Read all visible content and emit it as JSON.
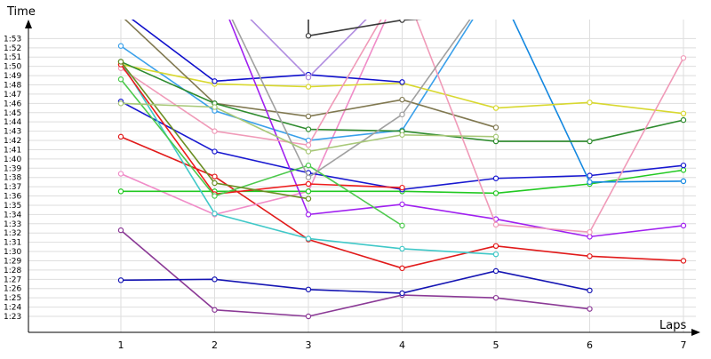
{
  "chart_data": {
    "type": "line",
    "ylabel": "Time",
    "xlabel": "Laps",
    "x_ticks": [
      "1",
      "2",
      "3",
      "4",
      "5",
      "6",
      "7"
    ],
    "y_ticks": [
      "1:23",
      "1:24",
      "1:25",
      "1:26",
      "1:27",
      "1:28",
      "1:29",
      "1:30",
      "1:31",
      "1:32",
      "1:33",
      "1:34",
      "1:35",
      "1:36",
      "1:37",
      "1:38",
      "1:39",
      "1:40",
      "1:41",
      "1:42",
      "1:43",
      "1:44",
      "1:45",
      "1:46",
      "1:47",
      "1:48",
      "1:49",
      "1:50",
      "1:51",
      "1:52",
      "1:53"
    ],
    "ylim_seconds": [
      82,
      116
    ],
    "xlim": [
      0.05,
      7.2
    ],
    "grid": true,
    "series": [
      {
        "color": "#8b3a96",
        "points": [
          [
            1,
            92.3
          ],
          [
            2,
            83.7
          ],
          [
            3,
            83.0
          ],
          [
            4,
            85.3
          ],
          [
            5,
            85.0
          ],
          [
            6,
            83.8
          ]
        ]
      },
      {
        "color": "#1515b3",
        "points": [
          [
            1,
            86.9
          ],
          [
            2,
            87.0
          ],
          [
            3,
            85.9
          ],
          [
            4,
            85.5
          ],
          [
            5,
            87.9
          ],
          [
            6,
            85.8
          ]
        ]
      },
      {
        "color": "#e11a1a",
        "points": [
          [
            1,
            102.4
          ],
          [
            2,
            98.1
          ],
          [
            3,
            91.3
          ],
          [
            4,
            88.2
          ],
          [
            5,
            90.6
          ],
          [
            6,
            89.5
          ],
          [
            7,
            89.0
          ]
        ]
      },
      {
        "color": "#f08cc8",
        "points": [
          [
            1,
            98.4
          ],
          [
            2,
            94.0
          ],
          [
            3,
            96.5
          ],
          [
            4,
            119.0
          ]
        ]
      },
      {
        "color": "#22c922",
        "points": [
          [
            1,
            96.5
          ],
          [
            2,
            96.5
          ],
          [
            3,
            96.5
          ],
          [
            4,
            96.5
          ],
          [
            5,
            96.3
          ],
          [
            6,
            97.3
          ],
          [
            7,
            98.8
          ]
        ]
      },
      {
        "color": "#1818d0",
        "points": [
          [
            1,
            106.2
          ],
          [
            2,
            100.8
          ],
          [
            3,
            98.5
          ],
          [
            4,
            96.7
          ],
          [
            5,
            97.9
          ],
          [
            6,
            98.2
          ],
          [
            7,
            99.3
          ]
        ]
      },
      {
        "color": "#3aa0ea",
        "points": [
          [
            1,
            112.2
          ],
          [
            2,
            105.2
          ],
          [
            3,
            102.0
          ],
          [
            4,
            103.1
          ],
          [
            5,
            119.0
          ]
        ]
      },
      {
        "color": "#1488e0",
        "points": [
          [
            5,
            119.0
          ],
          [
            6,
            97.5
          ],
          [
            7,
            97.6
          ]
        ]
      },
      {
        "color": "#d8d830",
        "points": [
          [
            1,
            110.2
          ],
          [
            2,
            108.1
          ],
          [
            3,
            107.8
          ],
          [
            4,
            108.2
          ],
          [
            5,
            105.5
          ],
          [
            6,
            106.1
          ],
          [
            7,
            104.9
          ]
        ]
      },
      {
        "color": "#807850",
        "points": [
          [
            1,
            115.5
          ],
          [
            2,
            106.0
          ],
          [
            3,
            104.6
          ],
          [
            4,
            106.4
          ],
          [
            5,
            103.4
          ]
        ]
      },
      {
        "color": "#2e8b2e",
        "points": [
          [
            1,
            110.5
          ],
          [
            2,
            106.0
          ],
          [
            3,
            103.2
          ],
          [
            4,
            103.0
          ],
          [
            5,
            101.9
          ],
          [
            6,
            101.9
          ],
          [
            7,
            104.2
          ]
        ]
      },
      {
        "color": "#1010cc",
        "points": [
          [
            1,
            116.0
          ],
          [
            2,
            108.4
          ],
          [
            3,
            109.1
          ],
          [
            4,
            108.3
          ]
        ]
      },
      {
        "color": "#b08ce0",
        "points": [
          [
            1,
            119.0
          ],
          [
            2,
            119.0
          ],
          [
            3,
            108.8
          ],
          [
            4,
            119.0
          ]
        ]
      },
      {
        "color": "#a020f0",
        "points": [
          [
            2,
            119.0
          ],
          [
            3,
            94.0
          ],
          [
            4,
            95.1
          ],
          [
            5,
            93.5
          ],
          [
            6,
            91.6
          ],
          [
            7,
            92.8
          ]
        ]
      },
      {
        "color": "#f09ab8",
        "points": [
          [
            1,
            109.8
          ],
          [
            2,
            103.0
          ],
          [
            3,
            101.5
          ],
          [
            4,
            119.0
          ],
          [
            5,
            92.9
          ],
          [
            6,
            92.1
          ],
          [
            7,
            110.9
          ]
        ]
      },
      {
        "color": "#40c8c8",
        "points": [
          [
            1,
            110.5
          ],
          [
            2,
            94.1
          ],
          [
            3,
            91.4
          ],
          [
            4,
            90.3
          ],
          [
            5,
            89.7
          ]
        ]
      },
      {
        "color": "#ee1b1b",
        "points": [
          [
            1,
            110.2
          ],
          [
            2,
            96.2
          ],
          [
            3,
            97.3
          ],
          [
            4,
            96.9
          ]
        ]
      },
      {
        "color": "#4cc94c",
        "points": [
          [
            1,
            108.6
          ],
          [
            2,
            96.0
          ],
          [
            3,
            99.3
          ],
          [
            4,
            92.8
          ]
        ]
      },
      {
        "color": "#6b8e23",
        "points": [
          [
            1,
            110.5
          ],
          [
            2,
            97.4
          ],
          [
            3,
            95.7
          ]
        ]
      },
      {
        "color": "#a0a0a0",
        "points": [
          [
            2,
            119.0
          ],
          [
            3,
            98.0
          ],
          [
            4,
            104.8
          ],
          [
            5,
            119.0
          ]
        ]
      },
      {
        "color": "#a8c878",
        "points": [
          [
            1,
            106.0
          ],
          [
            2,
            105.6
          ],
          [
            3,
            100.8
          ],
          [
            4,
            102.6
          ],
          [
            5,
            102.4
          ]
        ]
      },
      {
        "color": "#3a3a3a",
        "points": [
          [
            3,
            119.0
          ],
          [
            3,
            113.3
          ],
          [
            4,
            115.0
          ],
          [
            5,
            115.6
          ]
        ]
      }
    ]
  }
}
